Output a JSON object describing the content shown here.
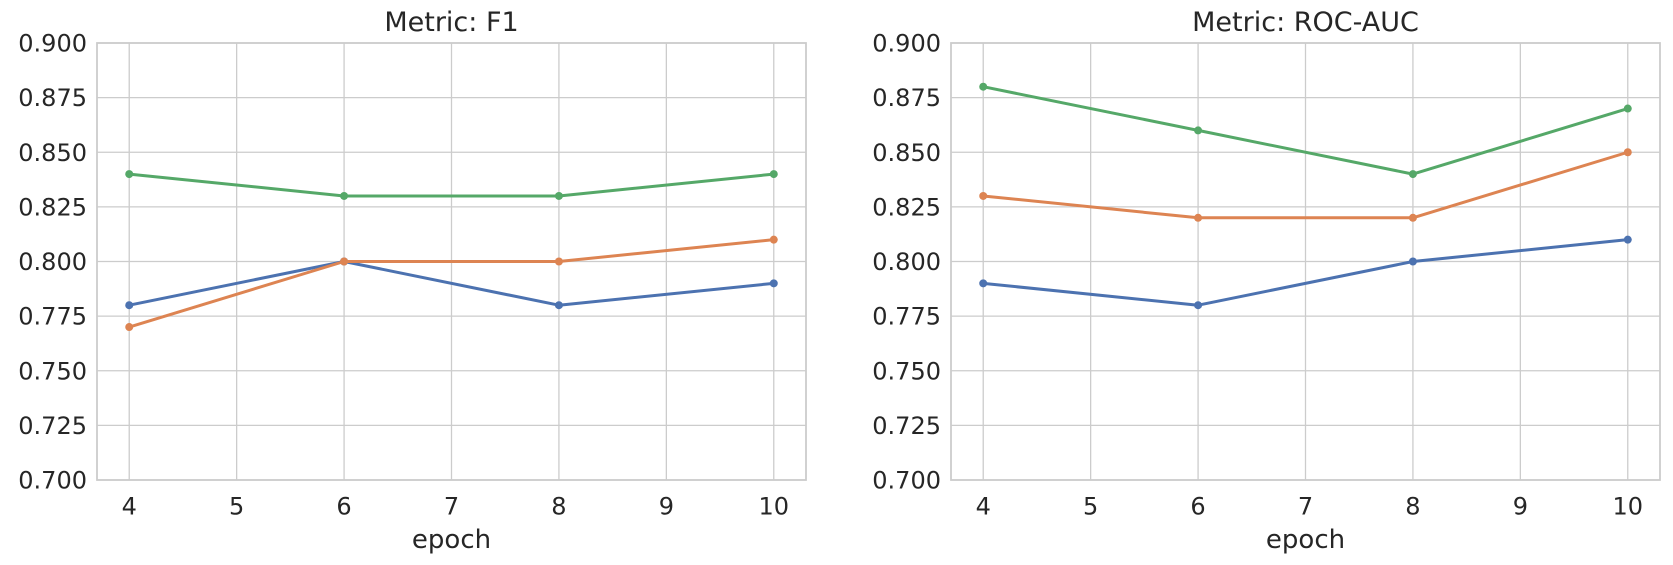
{
  "figure": {
    "background": "#FFFFFF",
    "text_color": "#262626",
    "grid_color": "#CCCCCC",
    "spine_color": "#CCCCCC"
  },
  "chart_data": [
    {
      "type": "line",
      "title": "Metric: F1",
      "xlabel": "epoch",
      "ylabel": "",
      "x": [
        4,
        6,
        8,
        10
      ],
      "series": [
        {
          "name": "blue-series",
          "color": "#4C72B0",
          "values": [
            0.78,
            0.8,
            0.78,
            0.79
          ]
        },
        {
          "name": "orange-series",
          "color": "#DD8452",
          "values": [
            0.77,
            0.8,
            0.8,
            0.81
          ]
        },
        {
          "name": "green-series",
          "color": "#55A868",
          "values": [
            0.84,
            0.83,
            0.83,
            0.84
          ]
        }
      ],
      "xlim": [
        3.7,
        10.3
      ],
      "ylim": [
        0.7,
        0.9
      ],
      "xticks": [
        4,
        5,
        6,
        7,
        8,
        9,
        10
      ],
      "xtick_labels": [
        "4",
        "5",
        "6",
        "7",
        "8",
        "9",
        "10"
      ],
      "yticks": [
        0.7,
        0.725,
        0.75,
        0.775,
        0.8,
        0.825,
        0.85,
        0.875,
        0.9
      ],
      "ytick_labels": [
        "0.700",
        "0.725",
        "0.750",
        "0.775",
        "0.800",
        "0.825",
        "0.850",
        "0.875",
        "0.900"
      ],
      "grid": true,
      "legend": "none",
      "markers": true
    },
    {
      "type": "line",
      "title": "Metric: ROC-AUC",
      "xlabel": "epoch",
      "ylabel": "",
      "x": [
        4,
        6,
        8,
        10
      ],
      "series": [
        {
          "name": "blue-series",
          "color": "#4C72B0",
          "values": [
            0.79,
            0.78,
            0.8,
            0.81
          ]
        },
        {
          "name": "orange-series",
          "color": "#DD8452",
          "values": [
            0.83,
            0.82,
            0.82,
            0.85
          ]
        },
        {
          "name": "green-series",
          "color": "#55A868",
          "values": [
            0.88,
            0.86,
            0.84,
            0.87
          ]
        }
      ],
      "xlim": [
        3.7,
        10.3
      ],
      "ylim": [
        0.7,
        0.9
      ],
      "xticks": [
        4,
        5,
        6,
        7,
        8,
        9,
        10
      ],
      "xtick_labels": [
        "4",
        "5",
        "6",
        "7",
        "8",
        "9",
        "10"
      ],
      "yticks": [
        0.7,
        0.725,
        0.75,
        0.775,
        0.8,
        0.825,
        0.85,
        0.875,
        0.9
      ],
      "ytick_labels": [
        "0.700",
        "0.725",
        "0.750",
        "0.775",
        "0.800",
        "0.825",
        "0.850",
        "0.875",
        "0.900"
      ],
      "grid": true,
      "legend": "none",
      "markers": true
    }
  ]
}
